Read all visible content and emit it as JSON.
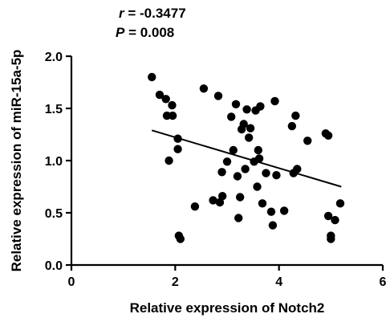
{
  "chart_data": {
    "type": "scatter",
    "xlabel": "Relative expression of Notch2",
    "ylabel": "Relative expression of miR-15a-5p",
    "xlim": [
      0,
      6
    ],
    "ylim": [
      0.0,
      2.0
    ],
    "xticks": [
      "0",
      "2",
      "4",
      "6"
    ],
    "yticks": [
      "0.0",
      "0.5",
      "1.0",
      "1.5",
      "2.0"
    ],
    "annotations": {
      "r_symbol": "r",
      "r_value": " = -0.3477",
      "p_symbol": "P",
      "p_value": " = 0.008"
    },
    "fit_line": {
      "x": [
        1.55,
        5.2
      ],
      "y": [
        1.29,
        0.75
      ]
    },
    "points": [
      {
        "x": 1.55,
        "y": 1.8
      },
      {
        "x": 1.7,
        "y": 1.63
      },
      {
        "x": 1.82,
        "y": 1.59
      },
      {
        "x": 1.84,
        "y": 1.43
      },
      {
        "x": 1.88,
        "y": 1.0
      },
      {
        "x": 1.94,
        "y": 1.53
      },
      {
        "x": 1.95,
        "y": 1.43
      },
      {
        "x": 2.05,
        "y": 1.21
      },
      {
        "x": 2.05,
        "y": 1.11
      },
      {
        "x": 2.07,
        "y": 0.28
      },
      {
        "x": 2.1,
        "y": 0.25
      },
      {
        "x": 2.38,
        "y": 0.56
      },
      {
        "x": 2.55,
        "y": 1.69
      },
      {
        "x": 2.73,
        "y": 0.62
      },
      {
        "x": 2.83,
        "y": 1.62
      },
      {
        "x": 2.86,
        "y": 0.6
      },
      {
        "x": 2.9,
        "y": 0.89
      },
      {
        "x": 2.91,
        "y": 0.66
      },
      {
        "x": 3.0,
        "y": 0.99
      },
      {
        "x": 3.08,
        "y": 1.42
      },
      {
        "x": 3.12,
        "y": 1.1
      },
      {
        "x": 3.17,
        "y": 1.54
      },
      {
        "x": 3.2,
        "y": 0.85
      },
      {
        "x": 3.22,
        "y": 0.45
      },
      {
        "x": 3.25,
        "y": 0.65
      },
      {
        "x": 3.28,
        "y": 1.3
      },
      {
        "x": 3.32,
        "y": 1.35
      },
      {
        "x": 3.35,
        "y": 0.92
      },
      {
        "x": 3.38,
        "y": 1.49
      },
      {
        "x": 3.42,
        "y": 1.22
      },
      {
        "x": 3.45,
        "y": 1.31
      },
      {
        "x": 3.52,
        "y": 0.99
      },
      {
        "x": 3.55,
        "y": 1.48
      },
      {
        "x": 3.58,
        "y": 0.75
      },
      {
        "x": 3.6,
        "y": 1.1
      },
      {
        "x": 3.62,
        "y": 1.02
      },
      {
        "x": 3.64,
        "y": 1.52
      },
      {
        "x": 3.68,
        "y": 0.59
      },
      {
        "x": 3.75,
        "y": 0.88
      },
      {
        "x": 3.85,
        "y": 0.51
      },
      {
        "x": 3.88,
        "y": 0.38
      },
      {
        "x": 3.92,
        "y": 1.57
      },
      {
        "x": 3.95,
        "y": 0.86
      },
      {
        "x": 4.1,
        "y": 0.52
      },
      {
        "x": 4.25,
        "y": 1.33
      },
      {
        "x": 4.28,
        "y": 0.88
      },
      {
        "x": 4.32,
        "y": 1.43
      },
      {
        "x": 4.35,
        "y": 0.92
      },
      {
        "x": 4.55,
        "y": 1.19
      },
      {
        "x": 4.9,
        "y": 1.26
      },
      {
        "x": 4.95,
        "y": 1.24
      },
      {
        "x": 4.95,
        "y": 0.47
      },
      {
        "x": 5.0,
        "y": 0.25
      },
      {
        "x": 5.0,
        "y": 0.28
      },
      {
        "x": 5.08,
        "y": 0.43
      },
      {
        "x": 5.18,
        "y": 0.59
      }
    ]
  }
}
